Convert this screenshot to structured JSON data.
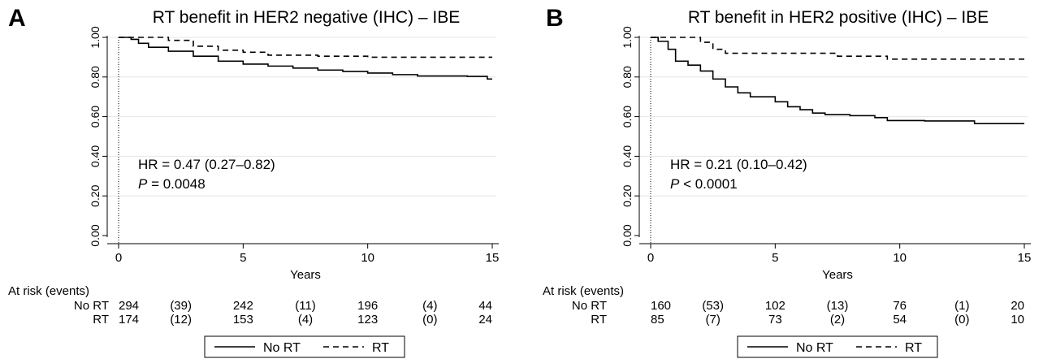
{
  "chart_data": [
    {
      "type": "line",
      "panel_letter": "A",
      "title": "RT benefit in HER2 negative (IHC) – IBE",
      "xlabel": "Years",
      "ylabel": "",
      "xlim": [
        0,
        15
      ],
      "ylim": [
        0,
        1
      ],
      "xticks": [
        "0",
        "5",
        "10",
        "15"
      ],
      "yticks": [
        "0.00",
        "0.20",
        "0.40",
        "0.60",
        "0.80",
        "1.00"
      ],
      "grid": "horizontal",
      "annotation": {
        "hr": "HR = 0.47 (0.27–0.82)",
        "p_label": "P",
        "p_value": " = 0.0048"
      },
      "series": [
        {
          "name": "No RT",
          "style": "solid",
          "points": [
            [
              0,
              1.0
            ],
            [
              0.5,
              0.99
            ],
            [
              0.8,
              0.97
            ],
            [
              1.2,
              0.95
            ],
            [
              2,
              0.93
            ],
            [
              3,
              0.905
            ],
            [
              4,
              0.88
            ],
            [
              5,
              0.865
            ],
            [
              6,
              0.855
            ],
            [
              7,
              0.845
            ],
            [
              8,
              0.835
            ],
            [
              9,
              0.828
            ],
            [
              10,
              0.82
            ],
            [
              11,
              0.812
            ],
            [
              12,
              0.805
            ],
            [
              14,
              0.803
            ],
            [
              14.8,
              0.803
            ],
            [
              14.8,
              0.79
            ],
            [
              15,
              0.79
            ]
          ]
        },
        {
          "name": "RT",
          "style": "dashed",
          "points": [
            [
              0,
              1.0
            ],
            [
              1,
              1.0
            ],
            [
              2,
              0.985
            ],
            [
              3,
              0.955
            ],
            [
              4,
              0.935
            ],
            [
              5,
              0.925
            ],
            [
              6,
              0.91
            ],
            [
              8,
              0.905
            ],
            [
              10,
              0.9
            ],
            [
              15,
              0.9
            ]
          ]
        }
      ],
      "at_risk": {
        "header": "At risk (events)",
        "rows": [
          {
            "label": "No RT",
            "values": [
              "294",
              "(39)",
              "242",
              "(11)",
              "196",
              "(4)",
              "44"
            ]
          },
          {
            "label": "RT",
            "values": [
              "174",
              "(12)",
              "153",
              "(4)",
              "123",
              "(0)",
              "24"
            ]
          }
        ]
      },
      "legend": {
        "entries": [
          "No RT",
          "RT"
        ],
        "position": "bottom"
      }
    },
    {
      "type": "line",
      "panel_letter": "B",
      "title": "RT benefit in HER2 positive (IHC) – IBE",
      "xlabel": "Years",
      "ylabel": "",
      "xlim": [
        0,
        15
      ],
      "ylim": [
        0,
        1
      ],
      "xticks": [
        "0",
        "5",
        "10",
        "15"
      ],
      "yticks": [
        "0.00",
        "0.20",
        "0.40",
        "0.60",
        "0.80",
        "1.00"
      ],
      "grid": "horizontal",
      "annotation": {
        "hr": "HR = 0.21 (0.10–0.42)",
        "p_label": "P",
        "p_value": " < 0.0001"
      },
      "series": [
        {
          "name": "No RT",
          "style": "solid",
          "points": [
            [
              0,
              1.0
            ],
            [
              0.3,
              0.98
            ],
            [
              0.7,
              0.94
            ],
            [
              1,
              0.88
            ],
            [
              1.5,
              0.86
            ],
            [
              2,
              0.83
            ],
            [
              2.5,
              0.79
            ],
            [
              3,
              0.75
            ],
            [
              3.5,
              0.72
            ],
            [
              4,
              0.7
            ],
            [
              5,
              0.675
            ],
            [
              5.5,
              0.65
            ],
            [
              6,
              0.635
            ],
            [
              6.5,
              0.618
            ],
            [
              7,
              0.61
            ],
            [
              8,
              0.605
            ],
            [
              9,
              0.595
            ],
            [
              9.5,
              0.58
            ],
            [
              11,
              0.578
            ],
            [
              13,
              0.578
            ],
            [
              13,
              0.565
            ],
            [
              15,
              0.565
            ]
          ]
        },
        {
          "name": "RT",
          "style": "dashed",
          "points": [
            [
              0,
              1.0
            ],
            [
              1,
              1.0
            ],
            [
              2,
              0.975
            ],
            [
              2.5,
              0.94
            ],
            [
              3,
              0.92
            ],
            [
              4,
              0.92
            ],
            [
              7,
              0.92
            ],
            [
              7.5,
              0.905
            ],
            [
              9.5,
              0.905
            ],
            [
              9.5,
              0.89
            ],
            [
              15,
              0.89
            ]
          ]
        }
      ],
      "at_risk": {
        "header": "At risk (events)",
        "rows": [
          {
            "label": "No RT",
            "values": [
              "160",
              "(53)",
              "102",
              "(13)",
              "76",
              "(1)",
              "20"
            ]
          },
          {
            "label": "RT",
            "values": [
              "85",
              "(7)",
              "73",
              "(2)",
              "54",
              "(0)",
              "10"
            ]
          }
        ]
      },
      "legend": {
        "entries": [
          "No RT",
          "RT"
        ],
        "position": "bottom"
      }
    }
  ]
}
